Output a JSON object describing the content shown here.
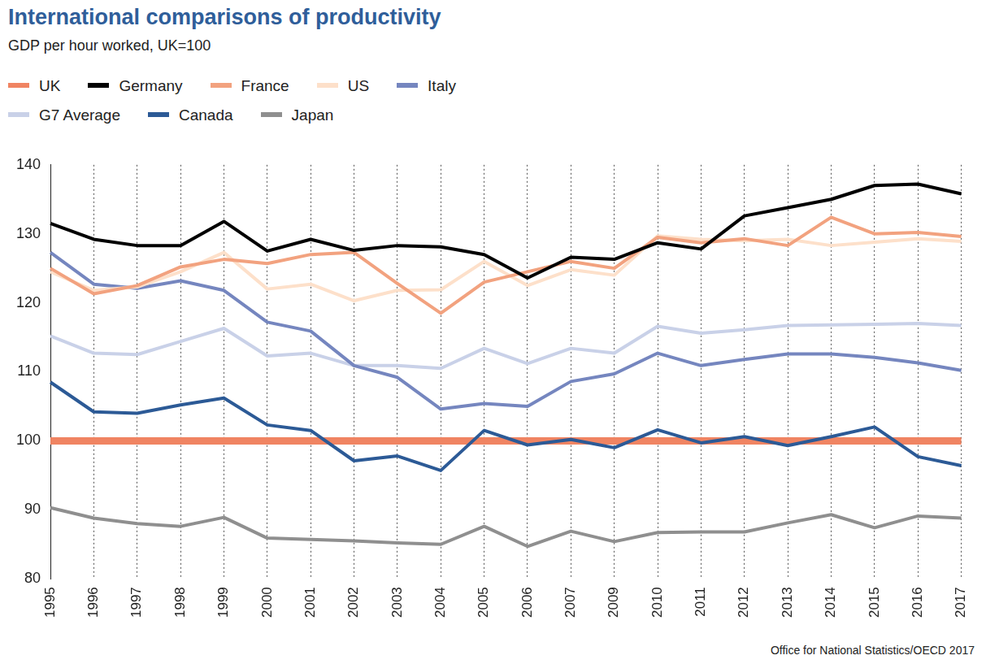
{
  "chart_data": {
    "type": "line",
    "title": "International comparisons of productivity",
    "subtitle": "GDP per hour worked, UK=100",
    "source": "Office for National Statistics/OECD 2017",
    "categories": [
      "1995",
      "1996",
      "1997",
      "1998",
      "1999",
      "2000",
      "2001",
      "2002",
      "2003",
      "2004",
      "2005",
      "2006",
      "2007",
      "2009",
      "2010",
      "2011",
      "2012",
      "2013",
      "2014",
      "2015",
      "2016",
      "2017"
    ],
    "series": [
      {
        "name": "UK",
        "color": "#f08462",
        "values": [
          100,
          100,
          100,
          100,
          100,
          100,
          100,
          100,
          100,
          100,
          100,
          100,
          100,
          100,
          100,
          100,
          100,
          100,
          100,
          100,
          100,
          100
        ]
      },
      {
        "name": "Germany",
        "color": "#000000",
        "values": [
          131.5,
          129.2,
          128.3,
          128.3,
          131.8,
          127.5,
          129.2,
          127.6,
          128.3,
          128.1,
          127,
          123.6,
          126.6,
          126.3,
          128.7,
          127.8,
          132.6,
          133.8,
          135,
          137,
          137.2,
          135.8
        ]
      },
      {
        "name": "France",
        "color": "#f2a27f",
        "values": [
          125,
          121.3,
          122.5,
          125.2,
          126.3,
          125.7,
          127,
          127.3,
          122.8,
          118.5,
          123,
          124.5,
          126,
          125,
          129.5,
          128.7,
          129.3,
          128.3,
          132.4,
          130,
          130.2,
          129.6
        ]
      },
      {
        "name": "US",
        "color": "#fde0ca",
        "values": [
          124.5,
          121.8,
          122.3,
          124.5,
          127.3,
          122,
          122.7,
          120.3,
          121.8,
          121.9,
          126,
          122.5,
          124.8,
          124,
          129.7,
          129.2,
          129,
          129.2,
          128.3,
          128.8,
          129.3,
          128.9
        ]
      },
      {
        "name": "Italy",
        "color": "#7586bf",
        "values": [
          127.3,
          122.7,
          122.1,
          123.2,
          121.8,
          117.2,
          115.9,
          110.9,
          109.2,
          104.6,
          105.4,
          105,
          108.6,
          109.7,
          112.7,
          110.9,
          111.8,
          112.6,
          112.6,
          112.1,
          111.3,
          110.2
        ]
      },
      {
        "name": "G7 Average",
        "color": "#c9d1e8",
        "values": [
          115.2,
          112.7,
          112.5,
          114.4,
          116.3,
          112.3,
          112.7,
          110.9,
          110.9,
          110.5,
          113.4,
          111.2,
          113.4,
          112.7,
          116.6,
          115.6,
          116.1,
          116.7,
          116.8,
          116.9,
          117,
          116.7
        ]
      },
      {
        "name": "Canada",
        "color": "#2c5a96",
        "values": [
          108.5,
          104.2,
          104,
          105.2,
          106.2,
          102.3,
          101.5,
          97.1,
          97.8,
          95.7,
          101.5,
          99.4,
          100.2,
          99,
          101.6,
          99.7,
          100.6,
          99.3,
          100.6,
          102,
          97.7,
          96.4
        ]
      },
      {
        "name": "Japan",
        "color": "#8f8f8f",
        "values": [
          90.3,
          88.8,
          88,
          87.6,
          88.9,
          85.9,
          85.7,
          85.5,
          85.2,
          85,
          87.6,
          84.7,
          86.9,
          85.4,
          86.7,
          86.8,
          86.8,
          88.1,
          89.3,
          87.4,
          89.1,
          88.8
        ]
      }
    ],
    "ylim": [
      80,
      140
    ],
    "yticks": [
      80,
      90,
      100,
      110,
      120,
      130,
      140
    ],
    "grid": true,
    "legend": "top"
  }
}
